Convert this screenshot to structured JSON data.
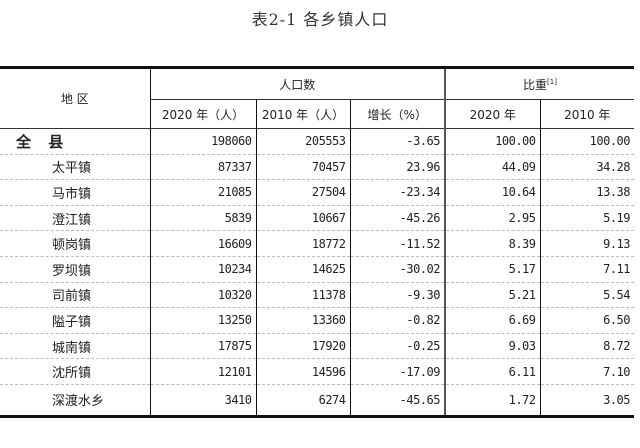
{
  "title": "表2-1  各乡镇人口",
  "headers": {
    "region": "地 区",
    "population": "人口数",
    "share": "比重",
    "share_note": "[1]",
    "sub": [
      "2020 年（人）",
      "2010 年（人）",
      "增长（%）",
      "2020 年",
      "2010 年"
    ]
  },
  "rows": [
    {
      "name": "全 县",
      "p2020": "198060",
      "p2010": "205553",
      "growth": "-3.65",
      "s2020": "100.00",
      "s2010": "100.00"
    },
    {
      "name": "太平镇",
      "p2020": "87337",
      "p2010": "70457",
      "growth": "23.96",
      "s2020": "44.09",
      "s2010": "34.28"
    },
    {
      "name": "马市镇",
      "p2020": "21085",
      "p2010": "27504",
      "growth": "-23.34",
      "s2020": "10.64",
      "s2010": "13.38"
    },
    {
      "name": "澄江镇",
      "p2020": "5839",
      "p2010": "10667",
      "growth": "-45.26",
      "s2020": "2.95",
      "s2010": "5.19"
    },
    {
      "name": "顿岗镇",
      "p2020": "16609",
      "p2010": "18772",
      "growth": "-11.52",
      "s2020": "8.39",
      "s2010": "9.13"
    },
    {
      "name": "罗坝镇",
      "p2020": "10234",
      "p2010": "14625",
      "growth": "-30.02",
      "s2020": "5.17",
      "s2010": "7.11"
    },
    {
      "name": "司前镇",
      "p2020": "10320",
      "p2010": "11378",
      "growth": "-9.30",
      "s2020": "5.21",
      "s2010": "5.54"
    },
    {
      "name": "隘子镇",
      "p2020": "13250",
      "p2010": "13360",
      "growth": "-0.82",
      "s2020": "6.69",
      "s2010": "6.50"
    },
    {
      "name": "城南镇",
      "p2020": "17875",
      "p2010": "17920",
      "growth": "-0.25",
      "s2020": "9.03",
      "s2010": "8.72"
    },
    {
      "name": "沈所镇",
      "p2020": "12101",
      "p2010": "14596",
      "growth": "-17.09",
      "s2020": "6.11",
      "s2010": "7.10"
    },
    {
      "name": "深渡水乡",
      "p2020": "3410",
      "p2010": "6274",
      "growth": "-45.65",
      "s2020": "1.72",
      "s2010": "3.05"
    }
  ]
}
